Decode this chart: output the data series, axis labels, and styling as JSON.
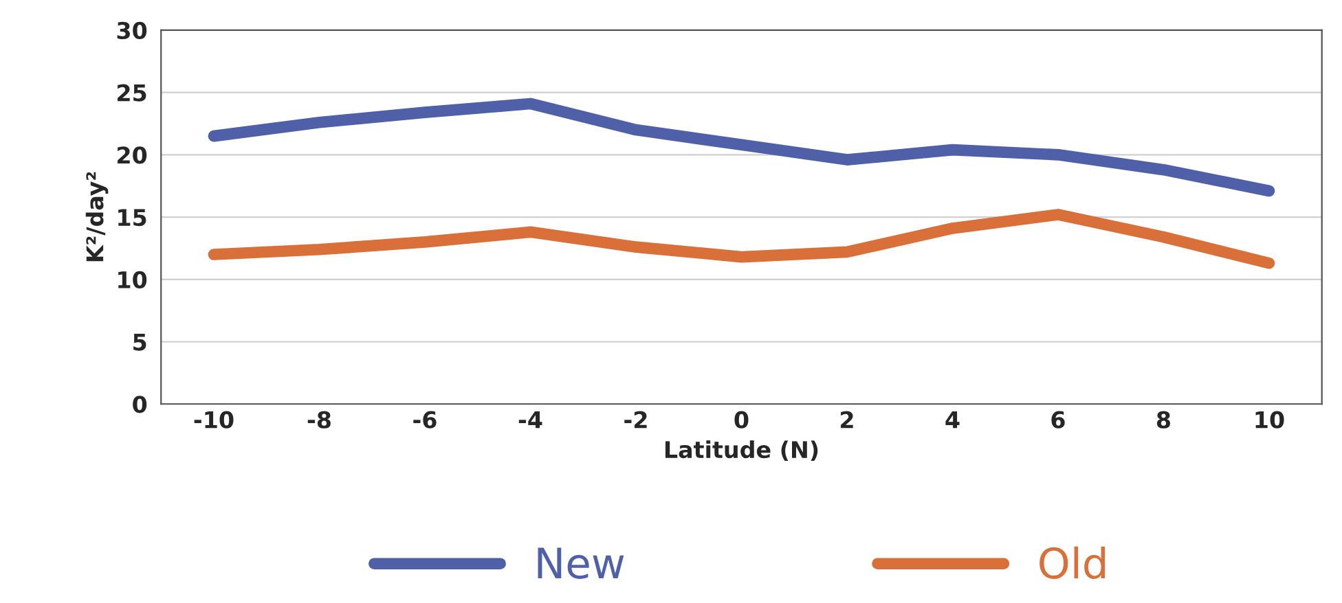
{
  "chart_data": {
    "type": "line",
    "xlabel": "Latitude (N)",
    "ylabel": "K²/day²",
    "categories": [
      "-10",
      "-8",
      "-6",
      "-4",
      "-2",
      "0",
      "2",
      "4",
      "6",
      "8",
      "10"
    ],
    "series": [
      {
        "name": "New",
        "color": "#4f5fa8",
        "values": [
          21.5,
          22.6,
          23.4,
          24.1,
          22.0,
          20.8,
          19.6,
          20.4,
          20.0,
          18.8,
          17.1
        ]
      },
      {
        "name": "Old",
        "color": "#d9703a",
        "values": [
          12.0,
          12.4,
          13.0,
          13.8,
          12.6,
          11.8,
          12.2,
          14.1,
          15.2,
          13.4,
          11.3
        ]
      }
    ],
    "ylim": [
      0,
      30
    ],
    "yticks": [
      0,
      5,
      10,
      15,
      20,
      25,
      30
    ],
    "grid": "y",
    "legend": "bottom",
    "marker": "none",
    "line_style": "solid"
  }
}
